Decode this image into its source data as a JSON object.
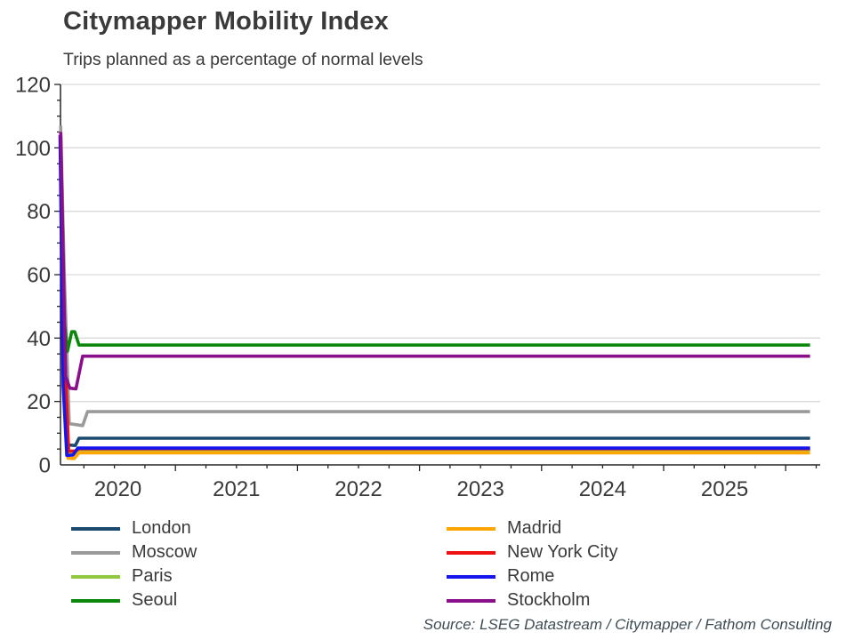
{
  "header": {
    "title": "Citymapper Mobility Index",
    "subtitle": "Trips planned as a percentage of normal levels"
  },
  "source": "Source: LSEG Datastream / Citymapper / Fathom Consulting",
  "colors": {
    "axis": "#262626",
    "grid": "#d9d9d9",
    "tick_text": "#3a3a3a",
    "source_text": "#3e4c54"
  },
  "chart_data": {
    "type": "line",
    "title": "Citymapper Mobility Index",
    "subtitle": "Trips planned as a percentage of normal levels",
    "xlabel": "",
    "ylabel": "",
    "ylim": [
      0,
      120
    ],
    "ytick_step": 20,
    "yminor_step": 5,
    "xlim": [
      2020.06,
      2026.2
    ],
    "yticklabels": [
      "0",
      "20",
      "40",
      "60",
      "80",
      "100",
      "120"
    ],
    "xticklabels": [
      "2020",
      "2021",
      "2022",
      "2023",
      "2024",
      "2025"
    ],
    "grid": "horizontal",
    "legend_position": "bottom",
    "point_format": "[decimal_year, index_value]",
    "series": [
      {
        "name": "London",
        "color": "#1c4a6e",
        "points": [
          [
            2020.06,
            104
          ],
          [
            2020.085,
            40
          ],
          [
            2020.115,
            6.3
          ],
          [
            2020.18,
            6.1
          ],
          [
            2020.21,
            8.4
          ],
          [
            2026.2,
            8.4
          ]
        ]
      },
      {
        "name": "Moscow",
        "color": "#9a9a9a",
        "points": [
          [
            2020.06,
            107
          ],
          [
            2020.09,
            60
          ],
          [
            2020.13,
            13
          ],
          [
            2020.24,
            12.4
          ],
          [
            2020.28,
            16.8
          ],
          [
            2026.2,
            16.8
          ]
        ]
      },
      {
        "name": "Paris",
        "color": "#92c83e",
        "points": [
          [
            2020.06,
            104
          ],
          [
            2020.09,
            35
          ],
          [
            2020.12,
            3.2
          ],
          [
            2020.17,
            3.4
          ],
          [
            2020.21,
            4.8
          ],
          [
            2026.2,
            4.8
          ]
        ]
      },
      {
        "name": "Seoul",
        "color": "#0b870b",
        "points": [
          [
            2020.06,
            104
          ],
          [
            2020.09,
            45
          ],
          [
            2020.115,
            35.8
          ],
          [
            2020.15,
            42
          ],
          [
            2020.175,
            42
          ],
          [
            2020.21,
            37.8
          ],
          [
            2026.2,
            37.8
          ]
        ]
      },
      {
        "name": "Madrid",
        "color": "#ffa500",
        "points": [
          [
            2020.06,
            104
          ],
          [
            2020.09,
            30
          ],
          [
            2020.12,
            2.1
          ],
          [
            2020.17,
            2.0
          ],
          [
            2020.21,
            3.8
          ],
          [
            2026.2,
            3.8
          ]
        ]
      },
      {
        "name": "New York City",
        "color": "#ee1111",
        "points": [
          [
            2020.06,
            104
          ],
          [
            2020.09,
            38
          ],
          [
            2020.125,
            4.3
          ],
          [
            2020.18,
            4.4
          ],
          [
            2020.21,
            5.1
          ],
          [
            2026.2,
            5.1
          ]
        ]
      },
      {
        "name": "Rome",
        "color": "#1515ee",
        "points": [
          [
            2020.055,
            104
          ],
          [
            2020.08,
            25
          ],
          [
            2020.11,
            3.0
          ],
          [
            2020.16,
            3.1
          ],
          [
            2020.2,
            5.3
          ],
          [
            2026.2,
            5.3
          ]
        ]
      },
      {
        "name": "Stockholm",
        "color": "#8a0f8a",
        "points": [
          [
            2020.06,
            105
          ],
          [
            2020.1,
            28
          ],
          [
            2020.135,
            24.2
          ],
          [
            2020.185,
            24.0
          ],
          [
            2020.24,
            34.3
          ],
          [
            2026.2,
            34.3
          ]
        ]
      }
    ]
  }
}
